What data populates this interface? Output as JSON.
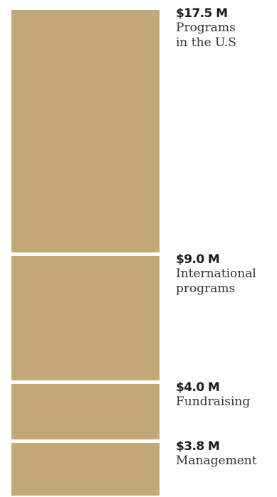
{
  "chart_data": {
    "type": "bar",
    "orientation": "stacked-column",
    "color": "#c4a777",
    "categories": [
      "Programs\nin the U.S",
      "International\nprograms",
      "Fundraising",
      "Management"
    ],
    "values": [
      17.5,
      9.0,
      4.0,
      3.8
    ],
    "value_labels": [
      "$17.5 M",
      "$9.0 M",
      "$4.0 M",
      "$3.8 M"
    ],
    "unit": "$M"
  }
}
